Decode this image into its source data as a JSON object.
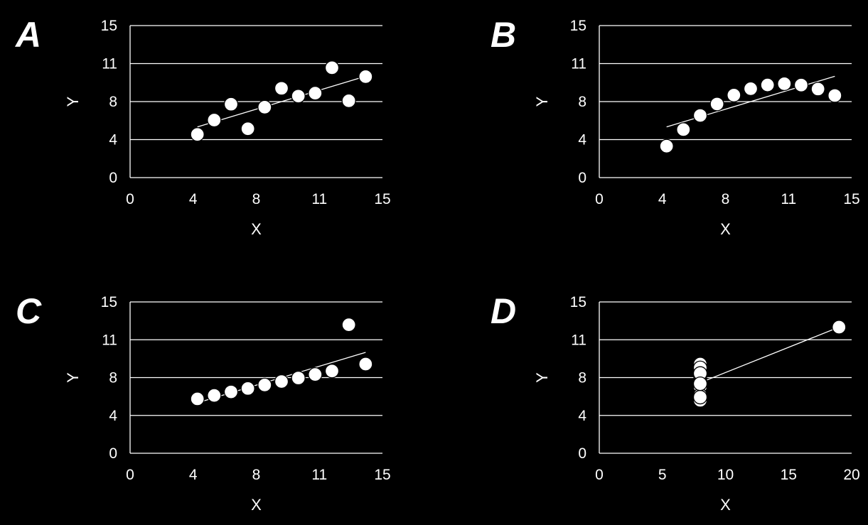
{
  "figure": {
    "background": "#000000",
    "foreground": "#ffffff"
  },
  "chart_data": [
    {
      "type": "scatter",
      "panel_label": "A",
      "xlabel": "X",
      "ylabel": "Y",
      "xlim": [
        0,
        15
      ],
      "ylim": [
        0,
        15
      ],
      "xticks": [
        "0",
        "4",
        "8",
        "11",
        "15"
      ],
      "yticks": [
        "0",
        "4",
        "8",
        "11",
        "15"
      ],
      "grid": "horizontal",
      "trendline": {
        "x": [
          4,
          14
        ],
        "y": [
          5.0,
          10.0
        ]
      },
      "series": [
        {
          "x": [
            4,
            5,
            6,
            7,
            8,
            9,
            10,
            11,
            12,
            13,
            14
          ],
          "y": [
            4.26,
            5.68,
            7.24,
            4.82,
            6.95,
            8.81,
            8.04,
            8.33,
            10.84,
            7.58,
            9.96
          ]
        }
      ]
    },
    {
      "type": "scatter",
      "panel_label": "B",
      "xlabel": "X",
      "ylabel": "Y",
      "xlim": [
        0,
        15
      ],
      "ylim": [
        0,
        15
      ],
      "xticks": [
        "0",
        "4",
        "8",
        "11",
        "15"
      ],
      "yticks": [
        "0",
        "4",
        "8",
        "11",
        "15"
      ],
      "grid": "horizontal",
      "trendline": {
        "x": [
          4,
          14
        ],
        "y": [
          5.0,
          10.0
        ]
      },
      "series": [
        {
          "x": [
            4,
            5,
            6,
            7,
            8,
            9,
            10,
            11,
            12,
            13,
            14
          ],
          "y": [
            3.1,
            4.74,
            6.13,
            7.26,
            8.14,
            8.77,
            9.14,
            9.26,
            9.13,
            8.74,
            8.1
          ]
        }
      ]
    },
    {
      "type": "scatter",
      "panel_label": "C",
      "xlabel": "X",
      "ylabel": "Y",
      "xlim": [
        0,
        15
      ],
      "ylim": [
        0,
        15
      ],
      "xticks": [
        "0",
        "4",
        "8",
        "11",
        "15"
      ],
      "yticks": [
        "0",
        "4",
        "8",
        "11",
        "15"
      ],
      "grid": "horizontal",
      "trendline": {
        "x": [
          4,
          14
        ],
        "y": [
          5.0,
          10.0
        ]
      },
      "series": [
        {
          "x": [
            4,
            5,
            6,
            7,
            8,
            9,
            10,
            11,
            12,
            13,
            14
          ],
          "y": [
            5.39,
            5.73,
            6.08,
            6.42,
            6.77,
            7.11,
            7.46,
            7.81,
            8.15,
            12.74,
            8.84
          ]
        }
      ]
    },
    {
      "type": "scatter",
      "panel_label": "D",
      "xlabel": "X",
      "ylabel": "Y",
      "xlim": [
        0,
        20
      ],
      "ylim": [
        0,
        15
      ],
      "xticks": [
        "0",
        "5",
        "10",
        "15",
        "20"
      ],
      "yticks": [
        "0",
        "4",
        "8",
        "11",
        "15"
      ],
      "grid": "horizontal",
      "trendline": {
        "x": [
          8,
          19
        ],
        "y": [
          7.0,
          12.5
        ]
      },
      "series": [
        {
          "x": [
            8,
            8,
            8,
            8,
            8,
            8,
            8,
            19,
            8,
            8,
            8
          ],
          "y": [
            6.58,
            5.76,
            7.71,
            8.84,
            8.47,
            7.04,
            5.25,
            12.5,
            5.56,
            7.91,
            6.89
          ]
        }
      ]
    }
  ]
}
